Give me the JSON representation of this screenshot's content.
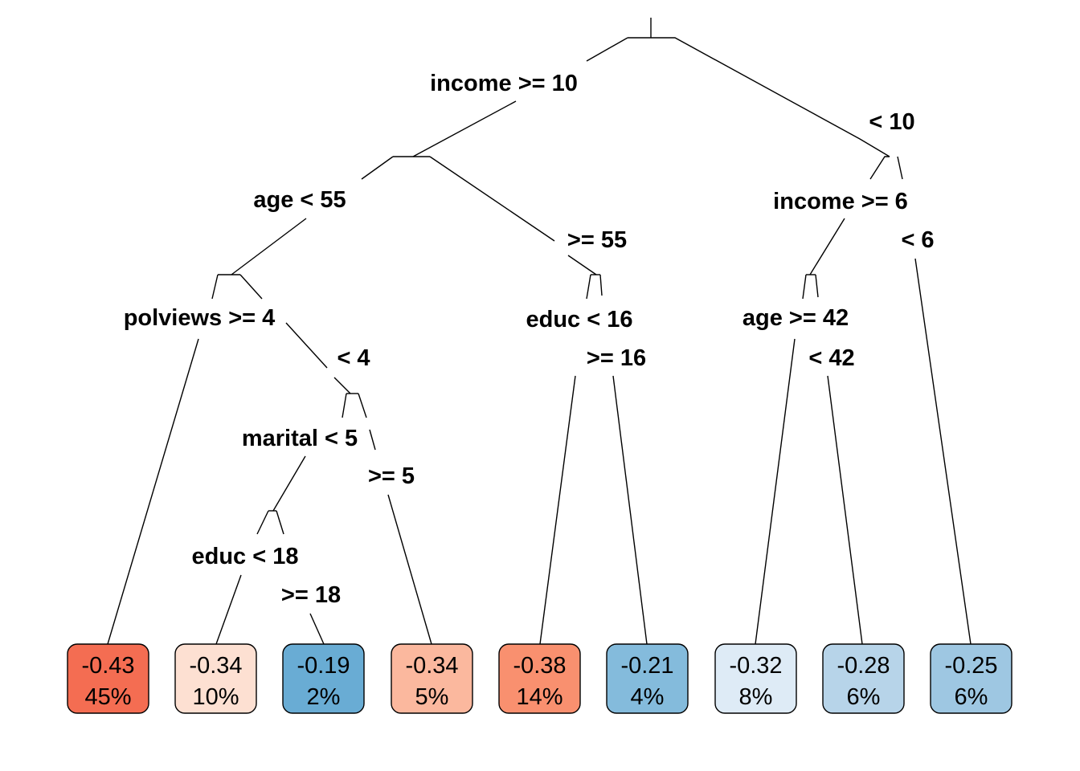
{
  "diagram": {
    "type": "decision-tree",
    "splits": [
      {
        "id": "n1",
        "yes": "income >= 10",
        "no": "< 10"
      },
      {
        "id": "n2",
        "yes": "age < 55",
        "no": ">= 55"
      },
      {
        "id": "n3",
        "yes": "income >= 6",
        "no": "< 6"
      },
      {
        "id": "n4",
        "yes": "polviews >= 4",
        "no": "< 4"
      },
      {
        "id": "n5",
        "yes": "educ < 16",
        "no": ">= 16"
      },
      {
        "id": "n6",
        "yes": "age >= 42",
        "no": "< 42"
      },
      {
        "id": "n7",
        "yes": "marital < 5",
        "no": ">= 5"
      },
      {
        "id": "n8",
        "yes": "educ < 18",
        "no": ">= 18"
      }
    ],
    "leaves": [
      {
        "id": "l1",
        "value": "-0.43",
        "percent": "45%",
        "color": "#f46d52"
      },
      {
        "id": "l2",
        "value": "-0.34",
        "percent": "10%",
        "color": "#fde0d2"
      },
      {
        "id": "l3",
        "value": "-0.19",
        "percent": "2%",
        "color": "#69acd4"
      },
      {
        "id": "l4",
        "value": "-0.34",
        "percent": "5%",
        "color": "#fbb89e"
      },
      {
        "id": "l5",
        "value": "-0.38",
        "percent": "14%",
        "color": "#f9906f"
      },
      {
        "id": "l6",
        "value": "-0.21",
        "percent": "4%",
        "color": "#84bbdc"
      },
      {
        "id": "l7",
        "value": "-0.32",
        "percent": "8%",
        "color": "#deebf6"
      },
      {
        "id": "l8",
        "value": "-0.28",
        "percent": "6%",
        "color": "#b7d4e9"
      },
      {
        "id": "l9",
        "value": "-0.25",
        "percent": "6%",
        "color": "#9ec7e2"
      }
    ]
  }
}
